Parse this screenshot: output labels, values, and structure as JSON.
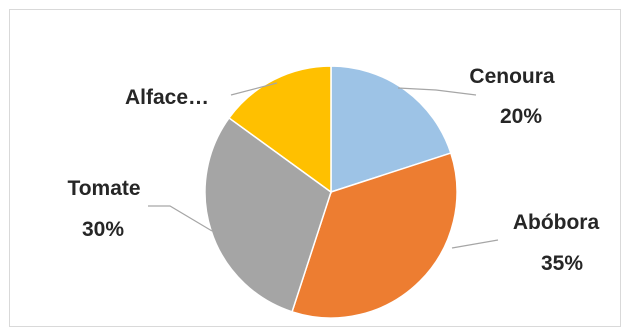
{
  "chart_data": {
    "type": "pie",
    "start_angle_deg": 0,
    "direction": "clockwise",
    "legend": "none",
    "slices": [
      {
        "category": "Cenoura",
        "value": 20,
        "label": "Cenoura",
        "percent_label": "20%",
        "color": "#9dc3e6"
      },
      {
        "category": "Abóbora",
        "value": 35,
        "label": "Abóbora",
        "percent_label": "35%",
        "color": "#ed7d31"
      },
      {
        "category": "Tomate",
        "value": 30,
        "label": "Tomate",
        "percent_label": "30%",
        "color": "#a5a5a5"
      },
      {
        "category": "Alface",
        "value": 15,
        "label": "Alface…",
        "percent_label": "",
        "color": "#ffc000"
      }
    ],
    "leader_line_color": "#a6a6a6"
  }
}
